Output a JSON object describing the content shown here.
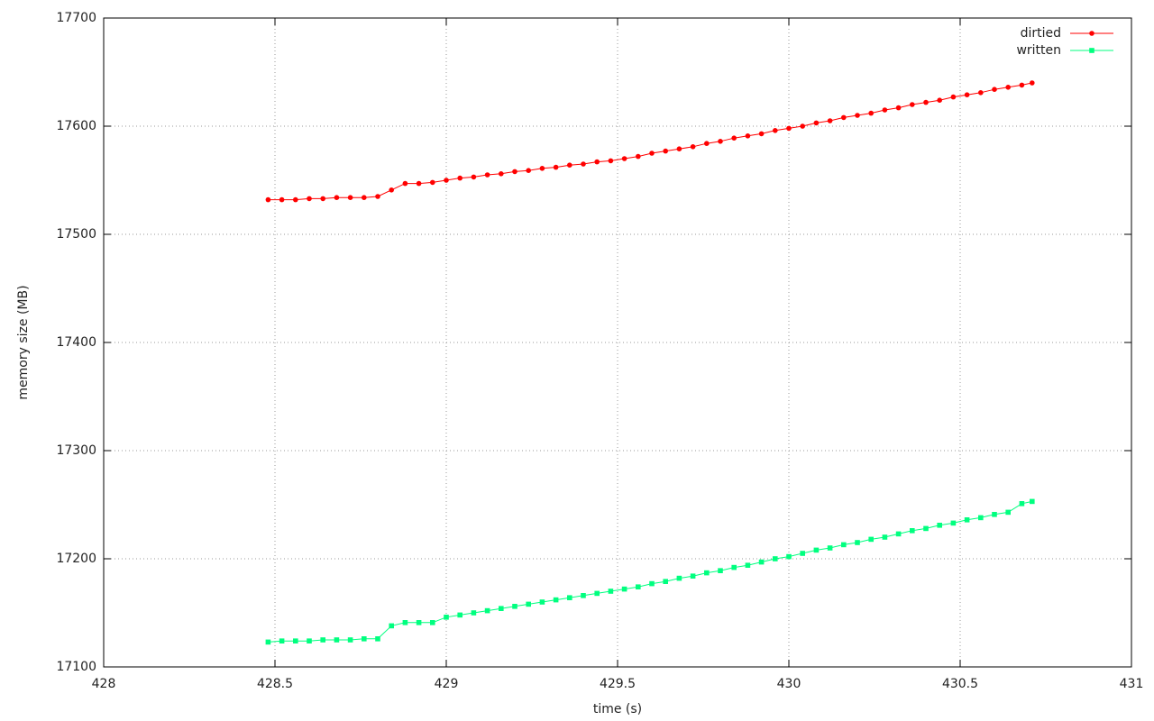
{
  "chart_data": {
    "type": "line",
    "xlabel": "time (s)",
    "ylabel": "memory size (MB)",
    "x": [
      428.48,
      428.52,
      428.56,
      428.6,
      428.64,
      428.68,
      428.72,
      428.76,
      428.8,
      428.84,
      428.88,
      428.92,
      428.96,
      429.0,
      429.04,
      429.08,
      429.12,
      429.16,
      429.2,
      429.24,
      429.28,
      429.32,
      429.36,
      429.4,
      429.44,
      429.48,
      429.52,
      429.56,
      429.6,
      429.64,
      429.68,
      429.72,
      429.76,
      429.8,
      429.84,
      429.88,
      429.92,
      429.96,
      430.0,
      430.04,
      430.08,
      430.12,
      430.16,
      430.2,
      430.24,
      430.28,
      430.32,
      430.36,
      430.4,
      430.44,
      430.48,
      430.52,
      430.56,
      430.6,
      430.64,
      430.68,
      430.71
    ],
    "series": [
      {
        "name": "dirtied",
        "color": "#ff0000",
        "marker": "circle",
        "values": [
          17532,
          17532,
          17532,
          17533,
          17533,
          17534,
          17534,
          17534,
          17535,
          17541,
          17547,
          17547,
          17548,
          17550,
          17552,
          17553,
          17555,
          17556,
          17558,
          17559,
          17561,
          17562,
          17564,
          17565,
          17567,
          17568,
          17570,
          17572,
          17575,
          17577,
          17579,
          17581,
          17584,
          17586,
          17589,
          17591,
          17593,
          17596,
          17598,
          17600,
          17603,
          17605,
          17608,
          17610,
          17612,
          17615,
          17617,
          17620,
          17622,
          17624,
          17627,
          17629,
          17631,
          17634,
          17636,
          17638,
          17640
        ]
      },
      {
        "name": "written",
        "color": "#00ff7f",
        "marker": "square",
        "values": [
          17123,
          17124,
          17124,
          17124,
          17125,
          17125,
          17125,
          17126,
          17126,
          17138,
          17141,
          17141,
          17141,
          17146,
          17148,
          17150,
          17152,
          17154,
          17156,
          17158,
          17160,
          17162,
          17164,
          17166,
          17168,
          17170,
          17172,
          17174,
          17177,
          17179,
          17182,
          17184,
          17187,
          17189,
          17192,
          17194,
          17197,
          17200,
          17202,
          17205,
          17208,
          17210,
          17213,
          17215,
          17218,
          17220,
          17223,
          17226,
          17228,
          17231,
          17233,
          17236,
          17238,
          17241,
          17243,
          17251,
          17253
        ]
      }
    ],
    "xlim": [
      428,
      431
    ],
    "xticks": [
      428,
      428.5,
      429,
      429.5,
      430,
      430.5,
      431
    ],
    "ylim": [
      17100,
      17700
    ],
    "yticks": [
      17100,
      17200,
      17300,
      17400,
      17500,
      17600,
      17700
    ],
    "grid": true,
    "legend": "top-right"
  }
}
